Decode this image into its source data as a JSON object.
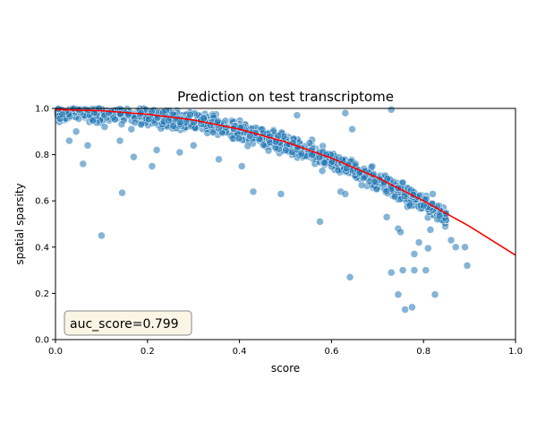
{
  "chart_data": {
    "type": "scatter",
    "title": "Prediction on test transcriptome",
    "xlabel": "score",
    "ylabel": "spatial sparsity",
    "xlim": [
      0,
      1
    ],
    "ylim": [
      0,
      1
    ],
    "xticks": [
      "0.0",
      "0.2",
      "0.4",
      "0.6",
      "0.8",
      "1.0"
    ],
    "yticks": [
      "0.0",
      "0.2",
      "0.4",
      "0.6",
      "0.8",
      "1.0"
    ],
    "grid": false,
    "legend": "none",
    "colors": {
      "points": "#1f77b4",
      "points_edge": "#ffffff",
      "fit_line": "#ff0000",
      "annotation_bg": "#fbf5e6",
      "annotation_border": "#888888"
    },
    "fit_line": {
      "x": [
        0.0,
        0.1,
        0.2,
        0.3,
        0.4,
        0.5,
        0.6,
        0.7,
        0.8,
        0.9,
        1.0
      ],
      "y": [
        0.995,
        0.99,
        0.975,
        0.95,
        0.91,
        0.855,
        0.785,
        0.7,
        0.6,
        0.49,
        0.365
      ]
    },
    "scatter_outliers": {
      "x": [
        0.03,
        0.045,
        0.06,
        0.07,
        0.1,
        0.14,
        0.145,
        0.165,
        0.17,
        0.21,
        0.22,
        0.27,
        0.3,
        0.355,
        0.405,
        0.43,
        0.49,
        0.525,
        0.575,
        0.58,
        0.62,
        0.63,
        0.63,
        0.64,
        0.645,
        0.72,
        0.73,
        0.73,
        0.745,
        0.745,
        0.75,
        0.755,
        0.76,
        0.77,
        0.775,
        0.78,
        0.78,
        0.79,
        0.8,
        0.805,
        0.81,
        0.815,
        0.82,
        0.825,
        0.83,
        0.835,
        0.86,
        0.87,
        0.89,
        0.895
      ],
      "y": [
        0.86,
        0.9,
        0.76,
        0.84,
        0.45,
        0.86,
        0.635,
        0.91,
        0.79,
        0.75,
        0.82,
        0.81,
        0.84,
        0.78,
        0.75,
        0.64,
        0.63,
        0.97,
        0.51,
        0.73,
        0.64,
        0.63,
        0.98,
        0.27,
        0.91,
        0.53,
        0.29,
        0.995,
        0.48,
        0.195,
        0.465,
        0.3,
        0.13,
        0.58,
        0.14,
        0.37,
        0.3,
        0.42,
        0.58,
        0.3,
        0.395,
        0.475,
        0.63,
        0.195,
        0.52,
        0.535,
        0.43,
        0.4,
        0.4,
        0.32
      ]
    },
    "annotation": "auc_score=0.799"
  }
}
